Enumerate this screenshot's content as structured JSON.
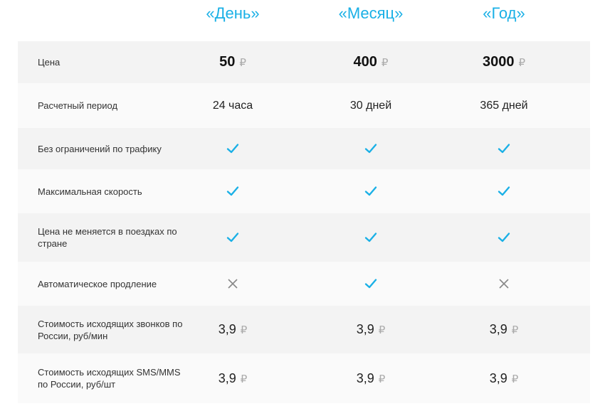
{
  "plans": [
    "«День»",
    "«Месяц»",
    "«Год»"
  ],
  "colors": {
    "accent": "#1ab0e6",
    "cross": "#888888"
  },
  "currency": "₽",
  "rows": [
    {
      "label": "Цена",
      "kind": "price",
      "values": [
        "50",
        "400",
        "3000"
      ]
    },
    {
      "label": "Расчетный период",
      "kind": "text",
      "values": [
        "24 часа",
        "30 дней",
        "365 дней"
      ]
    },
    {
      "label": "Без ограничений по трафику",
      "kind": "bool",
      "values": [
        true,
        true,
        true
      ]
    },
    {
      "label": "Максимальная скорость",
      "kind": "bool",
      "values": [
        true,
        true,
        true
      ]
    },
    {
      "label": "Цена не меняется в поездках по стране",
      "kind": "bool",
      "values": [
        true,
        true,
        true
      ]
    },
    {
      "label": "Автоматическое продление",
      "kind": "bool",
      "values": [
        false,
        true,
        false
      ]
    },
    {
      "label": "Стоимость исходящих звонков по России, руб/мин",
      "kind": "small-price",
      "values": [
        "3,9",
        "3,9",
        "3,9"
      ]
    },
    {
      "label": "Стоимость исходящих SMS/MMS по России, руб/шт",
      "kind": "small-price",
      "values": [
        "3,9",
        "3,9",
        "3,9"
      ]
    }
  ]
}
